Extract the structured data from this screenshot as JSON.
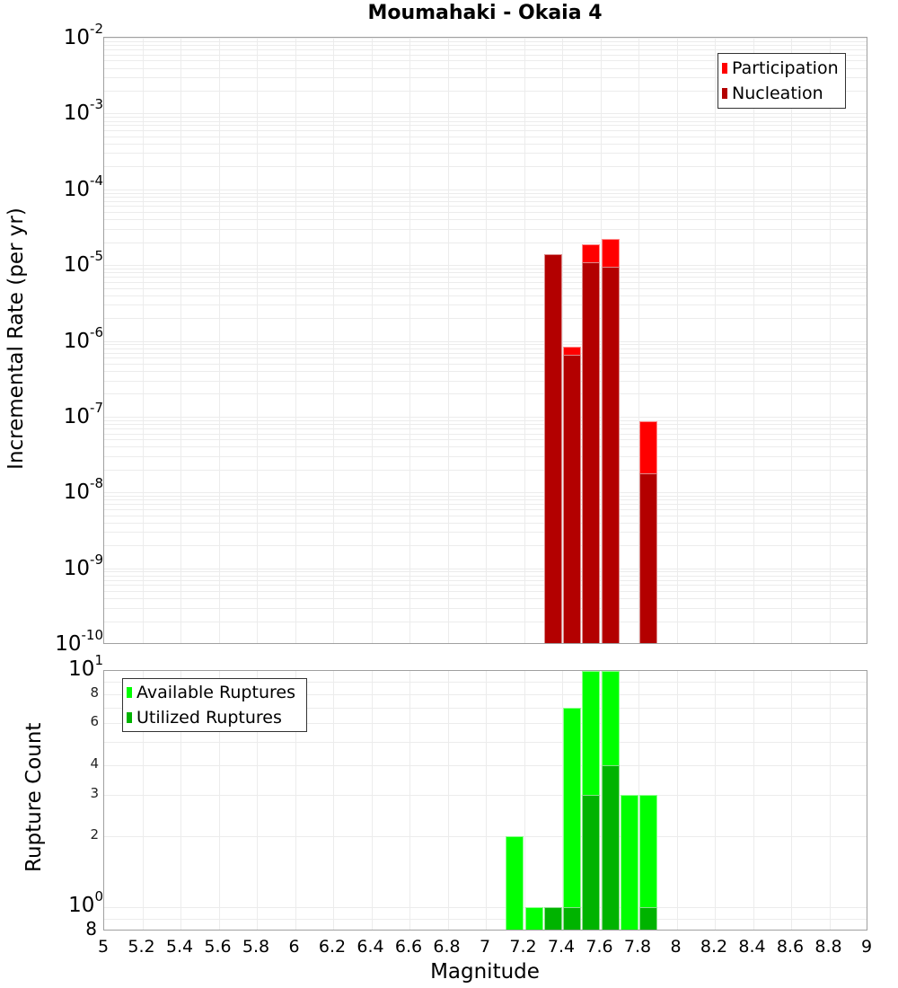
{
  "title": "Moumahaki - Okaia 4",
  "x_axis": {
    "label": "Magnitude",
    "ticks": [
      "5",
      "5.2",
      "5.4",
      "5.6",
      "5.8",
      "6",
      "6.2",
      "6.4",
      "6.6",
      "6.8",
      "7",
      "7.2",
      "7.4",
      "7.6",
      "7.8",
      "8",
      "8.2",
      "8.4",
      "8.6",
      "8.8",
      "9"
    ]
  },
  "top_plot": {
    "ylabel": "Incremental Rate (per yr)",
    "y_ticks": [
      {
        "base": "10",
        "exp": "-2"
      },
      {
        "base": "10",
        "exp": "-3"
      },
      {
        "base": "10",
        "exp": "-4"
      },
      {
        "base": "10",
        "exp": "-5"
      },
      {
        "base": "10",
        "exp": "-6"
      },
      {
        "base": "10",
        "exp": "-7"
      },
      {
        "base": "10",
        "exp": "-8"
      },
      {
        "base": "10",
        "exp": "-9"
      },
      {
        "base": "10",
        "exp": "-10"
      }
    ],
    "legend": [
      {
        "label": "Participation",
        "color": "#ff0000"
      },
      {
        "label": "Nucleation",
        "color": "#b30000"
      }
    ]
  },
  "bottom_plot": {
    "ylabel": "Rupture Count",
    "y_ticks_major": [
      {
        "base": "10",
        "exp": "1"
      },
      {
        "base": "10",
        "exp": "0"
      }
    ],
    "y_ticks_minor": [
      "8",
      "6",
      "4",
      "3",
      "2"
    ],
    "y_bottom_label": "8",
    "legend": [
      {
        "label": "Available Ruptures",
        "color": "#00ff00"
      },
      {
        "label": "Utilized Ruptures",
        "color": "#00b300"
      }
    ]
  },
  "chart_data": [
    {
      "type": "bar",
      "title": "Moumahaki - Okaia 4",
      "xlabel": "Magnitude",
      "ylabel": "Incremental Rate (per yr)",
      "yscale": "log",
      "xlim": [
        5,
        9
      ],
      "ylim": [
        1e-10,
        0.01
      ],
      "grid": true,
      "legend_position": "top-right",
      "categories": [
        7.35,
        7.45,
        7.55,
        7.65,
        7.85
      ],
      "series": [
        {
          "name": "Participation",
          "color": "#ff0000",
          "values": [
            1.4e-05,
            8.4e-07,
            1.9e-05,
            2.2e-05,
            8.7e-08
          ]
        },
        {
          "name": "Nucleation",
          "color": "#b30000",
          "values": [
            1.4e-05,
            6.6e-07,
            1.1e-05,
            9.5e-06,
            1.8e-08
          ]
        }
      ]
    },
    {
      "type": "bar",
      "xlabel": "Magnitude",
      "ylabel": "Rupture Count",
      "yscale": "log",
      "xlim": [
        5,
        9
      ],
      "ylim": [
        0.8,
        10
      ],
      "grid": true,
      "legend_position": "top-left",
      "categories": [
        7.15,
        7.25,
        7.35,
        7.45,
        7.55,
        7.65,
        7.75,
        7.85
      ],
      "series": [
        {
          "name": "Available Ruptures",
          "color": "#00ff00",
          "values": [
            2,
            1,
            1,
            7,
            10,
            10,
            3,
            3
          ]
        },
        {
          "name": "Utilized Ruptures",
          "color": "#00b300",
          "values": [
            0,
            0,
            1,
            1,
            3,
            4,
            0,
            1
          ]
        }
      ]
    }
  ]
}
